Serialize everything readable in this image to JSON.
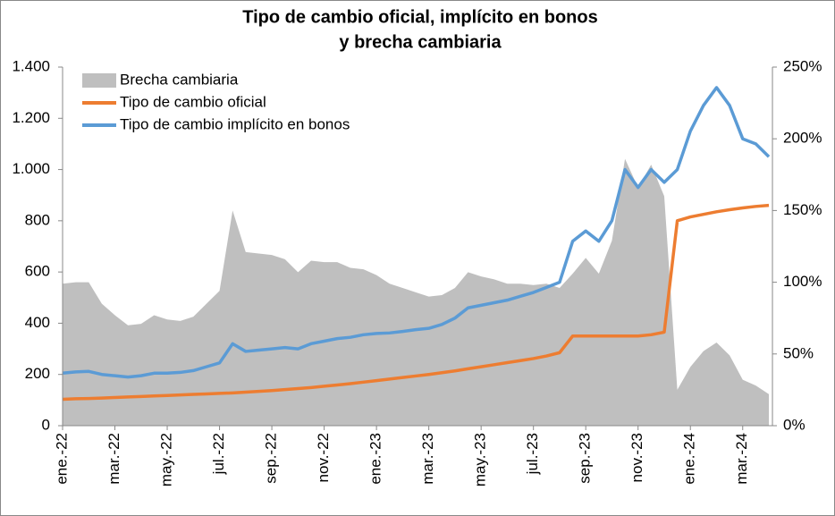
{
  "chart_data": {
    "type": "line",
    "title": [
      "Tipo de cambio oficial, implícito en bonos",
      "y brecha cambiaria"
    ],
    "categories": [
      "ene.-22",
      null,
      null,
      null,
      "mar.-22",
      null,
      null,
      null,
      "may.-22",
      null,
      null,
      null,
      "jul.-22",
      null,
      null,
      null,
      "sep.-22",
      null,
      null,
      null,
      "nov.-22",
      null,
      null,
      null,
      "ene.-23",
      null,
      null,
      null,
      "mar.-23",
      null,
      null,
      null,
      "may.-23",
      null,
      null,
      null,
      "jul.-23",
      null,
      null,
      null,
      "sep.-23",
      null,
      null,
      null,
      "nov.-23",
      null,
      null,
      null,
      "ene.-24",
      null,
      null,
      null,
      "mar.-24",
      null,
      null
    ],
    "series": [
      {
        "name": "Brecha cambiaria",
        "type": "area",
        "axis": "y2",
        "color": "#bfbfbf",
        "values": [
          99,
          100,
          100,
          85,
          77,
          70,
          71,
          77,
          74,
          73,
          76,
          85,
          94,
          150,
          121,
          120,
          119,
          116,
          107,
          115,
          114,
          114,
          110,
          109,
          105,
          99,
          96,
          93,
          90,
          91,
          96,
          107,
          104,
          102,
          99,
          99,
          98,
          99,
          96,
          106,
          117,
          106,
          129,
          186,
          166,
          182,
          160,
          25,
          41,
          52,
          58,
          49,
          32,
          28,
          22
        ]
      },
      {
        "name": "Tipo de cambio oficial",
        "type": "line",
        "color": "#ed7d31",
        "values": [
          103,
          105,
          106,
          108,
          110,
          112,
          114,
          116,
          118,
          120,
          122,
          124,
          126,
          128,
          131,
          134,
          137,
          141,
          145,
          149,
          154,
          159,
          164,
          170,
          176,
          182,
          188,
          194,
          200,
          207,
          214,
          222,
          230,
          238,
          246,
          254,
          262,
          272,
          285,
          350,
          350,
          350,
          350,
          350,
          350,
          355,
          365,
          800,
          815,
          825,
          835,
          843,
          850,
          856,
          860
        ]
      },
      {
        "name": "Tipo de cambio implícito en bonos",
        "type": "line",
        "color": "#5b9bd5",
        "values": [
          205,
          210,
          212,
          200,
          195,
          190,
          195,
          205,
          205,
          208,
          215,
          230,
          245,
          320,
          290,
          295,
          300,
          305,
          300,
          320,
          330,
          340,
          345,
          355,
          360,
          362,
          368,
          375,
          380,
          395,
          420,
          460,
          470,
          480,
          490,
          505,
          520,
          540,
          560,
          720,
          760,
          720,
          800,
          1000,
          930,
          1000,
          950,
          1000,
          1150,
          1250,
          1320,
          1250,
          1120,
          1100,
          1050
        ]
      }
    ],
    "ylim": [
      0,
      1400
    ],
    "yticks": [
      0,
      200,
      400,
      600,
      800,
      {
        "value": 1000,
        "label": "1.000"
      },
      {
        "value": 1200,
        "label": "1.200"
      },
      {
        "value": 1400,
        "label": "1.400"
      }
    ],
    "y2lim": [
      0,
      250
    ],
    "y2ticks": [
      {
        "value": 0,
        "label": "0%"
      },
      {
        "value": 50,
        "label": "50%"
      },
      {
        "value": 100,
        "label": "100%"
      },
      {
        "value": 150,
        "label": "150%"
      },
      {
        "value": 200,
        "label": "200%"
      },
      {
        "value": 250,
        "label": "250%"
      }
    ],
    "legend": "top-left",
    "grid": false
  }
}
